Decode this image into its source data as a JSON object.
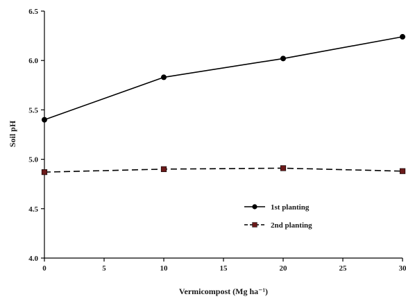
{
  "chart_data": {
    "type": "line",
    "xlabel": "Vermicompost (Mg ha⁻¹)",
    "ylabel": "Soil pH",
    "xlim": [
      0,
      30
    ],
    "ylim": [
      4.0,
      6.5
    ],
    "x_ticks": [
      "0",
      "5",
      "10",
      "15",
      "20",
      "25",
      "30"
    ],
    "y_ticks": [
      "4.0",
      "4.5",
      "5.0",
      "5.5",
      "6.0",
      "6.5"
    ],
    "grid": false,
    "legend_position": "lower-right",
    "series": [
      {
        "name": "1st planting",
        "x": [
          0,
          10,
          20,
          30
        ],
        "y": [
          5.4,
          5.83,
          6.02,
          6.24
        ],
        "line_style": "solid",
        "marker": "circle",
        "color": "#000000"
      },
      {
        "name": "2nd planting",
        "x": [
          0,
          10,
          20,
          30
        ],
        "y": [
          4.87,
          4.9,
          4.91,
          4.88
        ],
        "line_style": "dashed",
        "marker": "square",
        "color": "#000000",
        "marker_color": "#6b1a1a"
      }
    ]
  }
}
